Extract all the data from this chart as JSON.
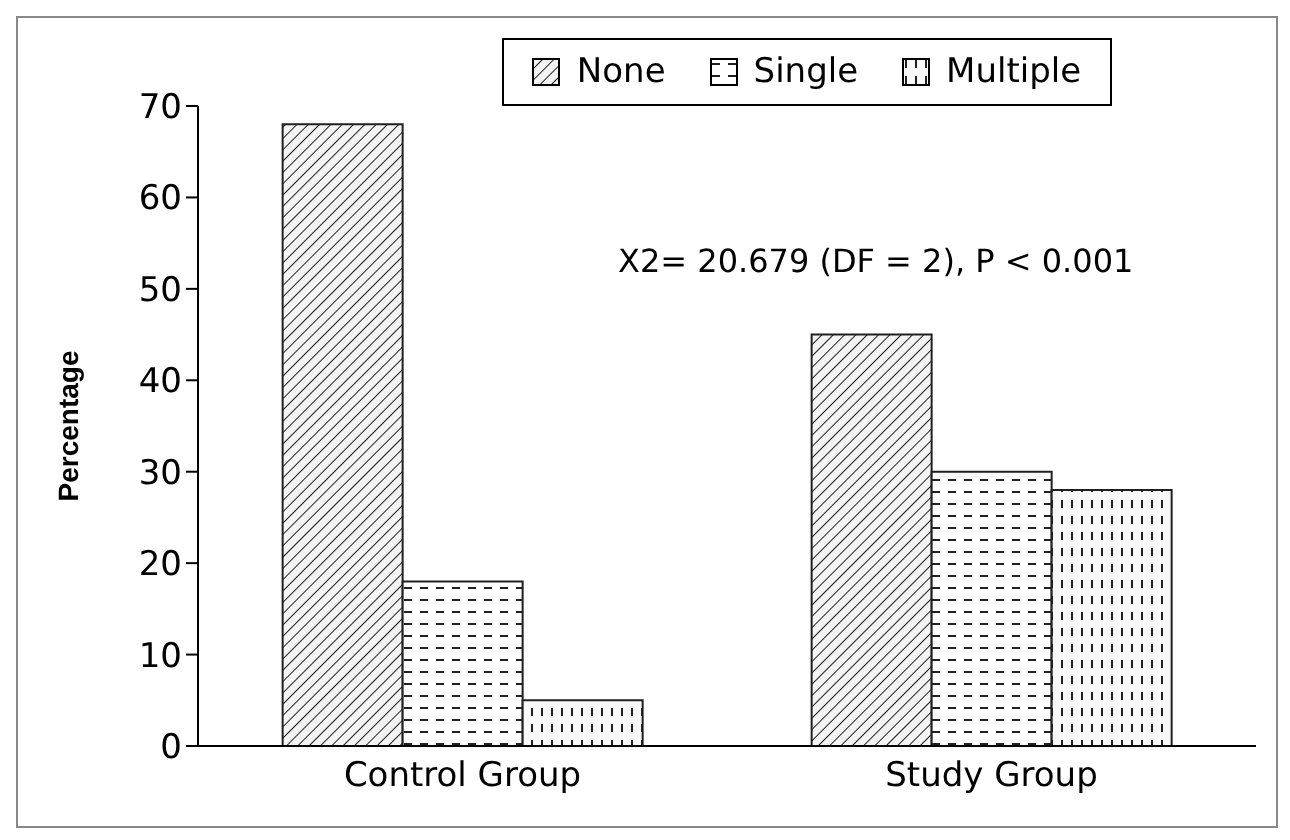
{
  "chart_data": {
    "type": "bar",
    "ylabel": "Percentage",
    "categories": [
      "Control Group",
      "Study Group"
    ],
    "series": [
      {
        "name": "None",
        "color": "#202020",
        "values": [
          68,
          45
        ]
      },
      {
        "name": "Single",
        "color": "#202020",
        "values": [
          18,
          30
        ]
      },
      {
        "name": "Multiple",
        "color": "#202020",
        "values": [
          5,
          28
        ]
      }
    ],
    "ylim": [
      0,
      70
    ],
    "yticks": [
      0,
      10,
      20,
      30,
      40,
      50,
      60,
      70
    ],
    "grid": false,
    "legend": "top",
    "annotations": [
      "X2= 20.679 (DF = 2), P < 0.001"
    ]
  }
}
